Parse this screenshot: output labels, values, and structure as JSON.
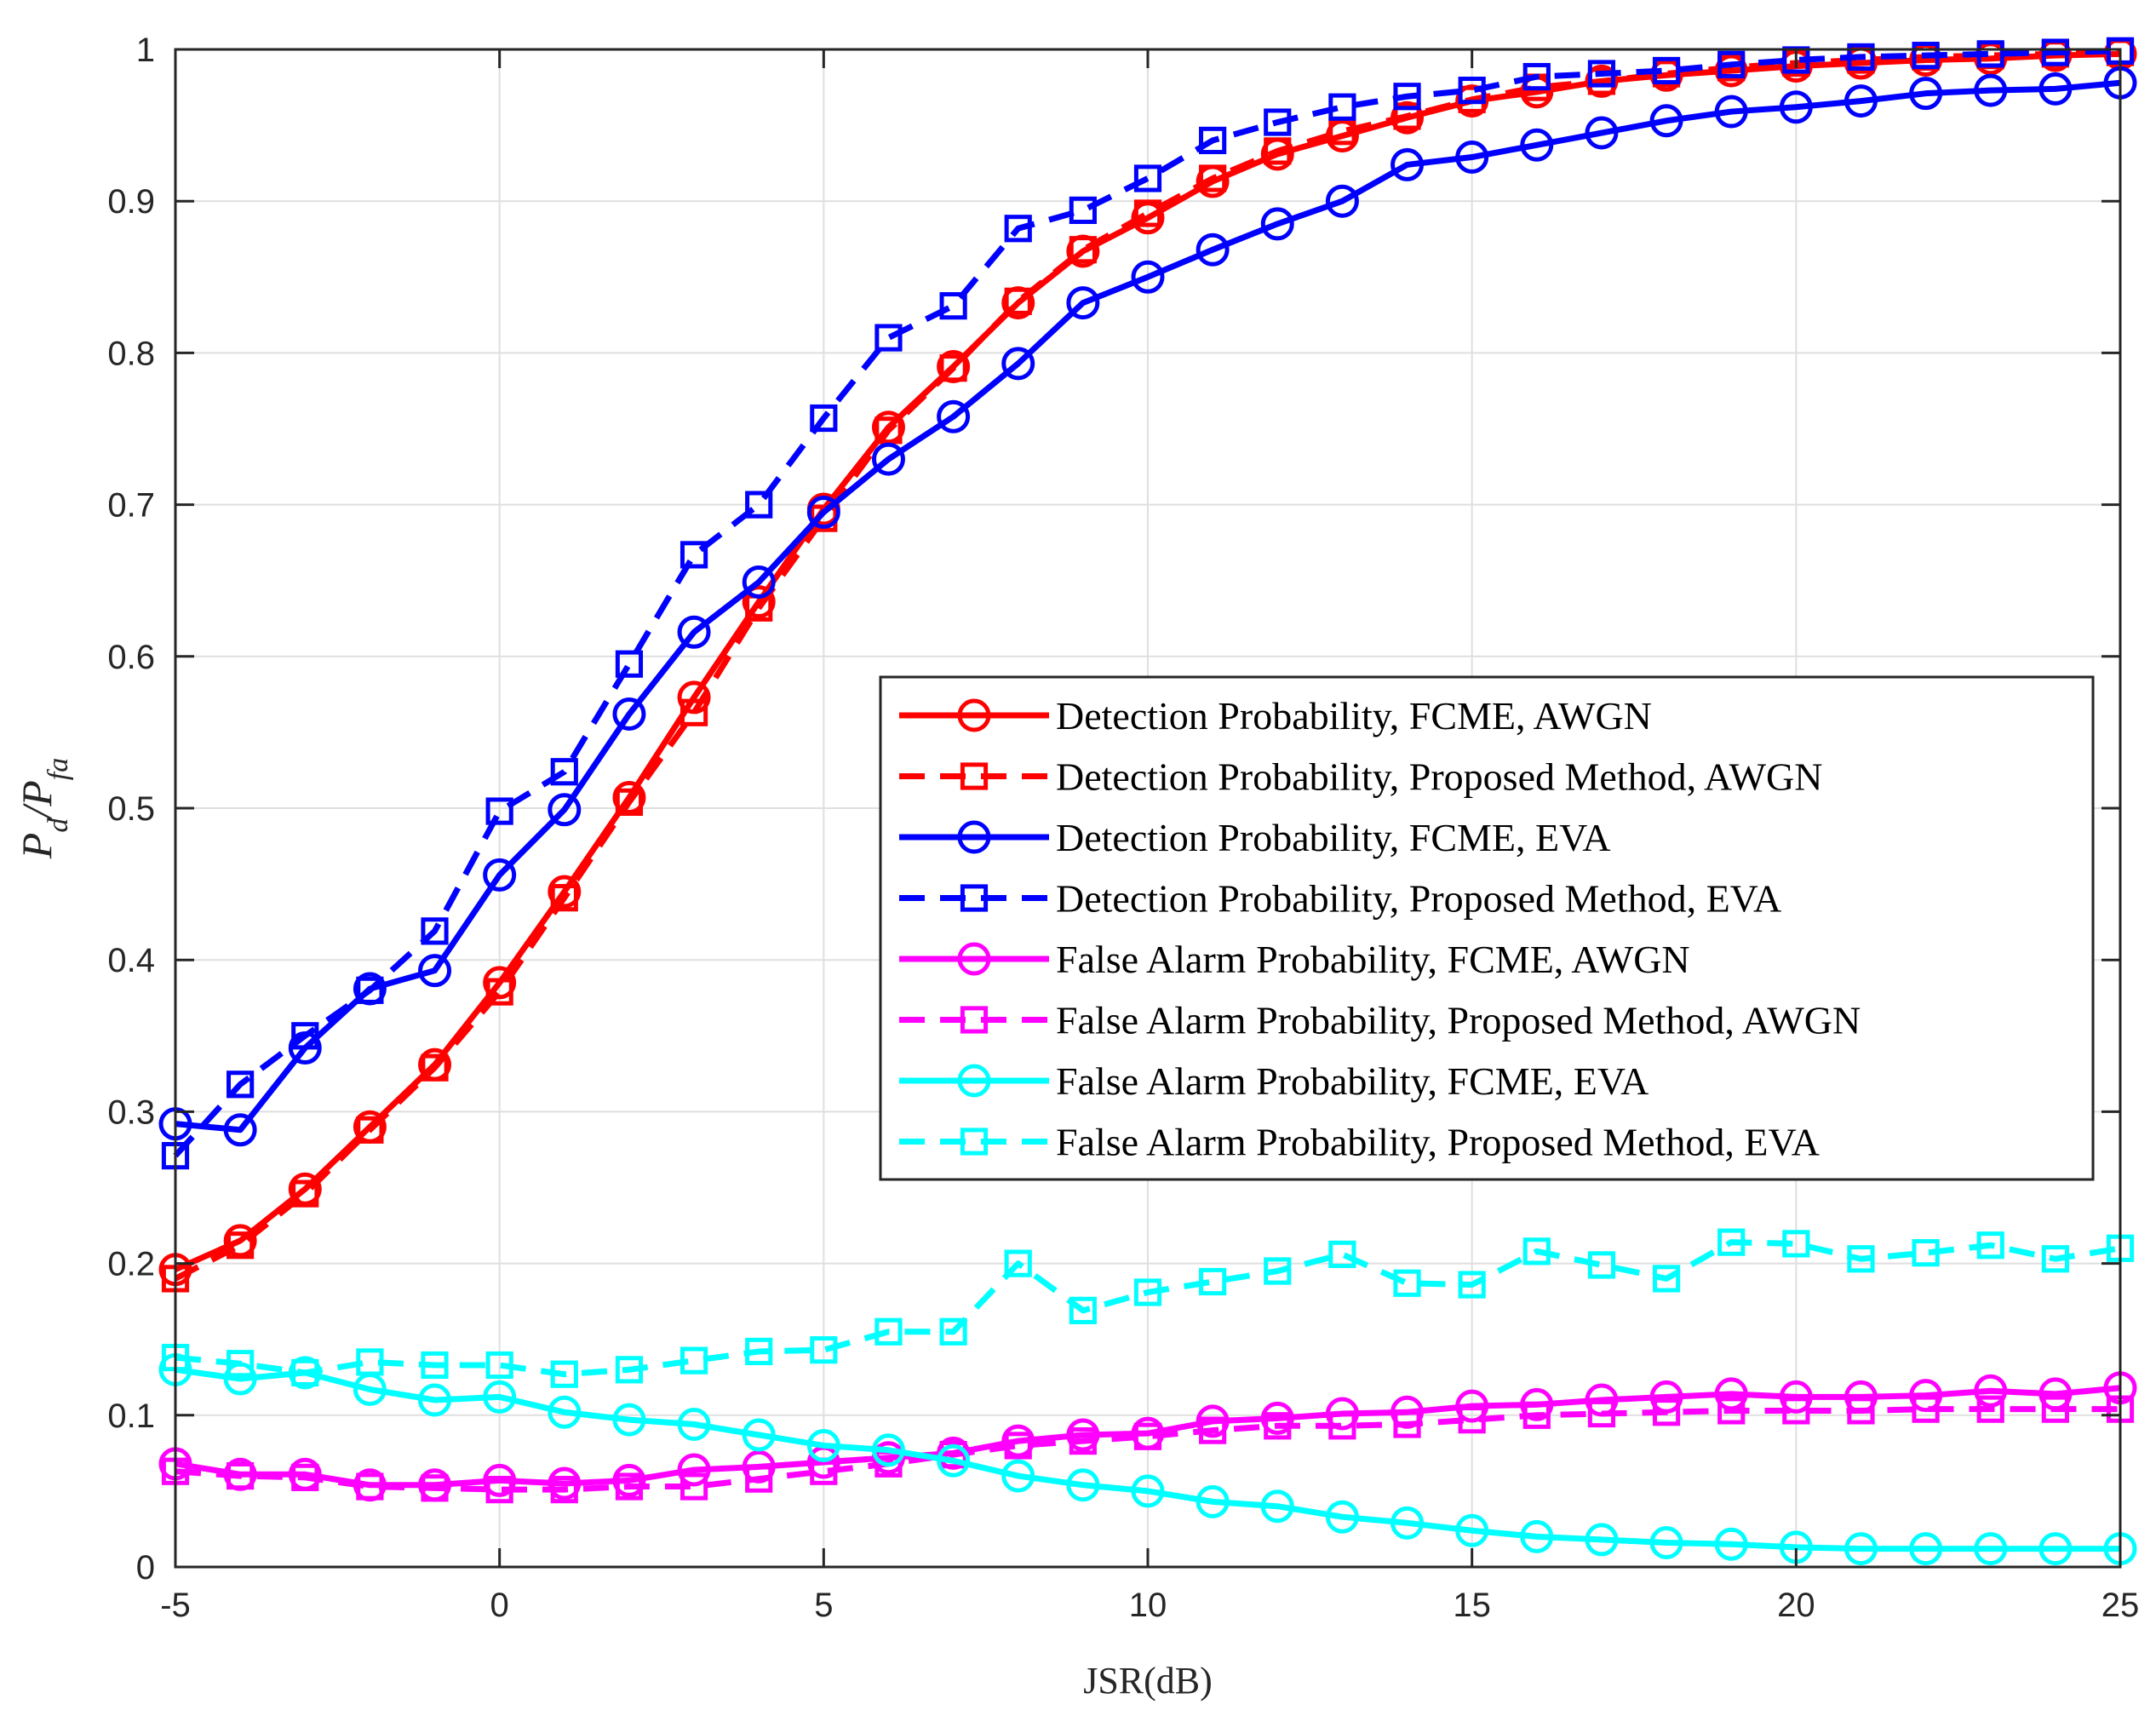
{
  "chart_data": {
    "type": "line",
    "title": "",
    "xlabel": "JSR(dB)",
    "ylabel": {
      "main": "P",
      "sub1": "d",
      "sep": "/P",
      "sub2": "fa"
    },
    "xlim": [
      -5,
      25
    ],
    "ylim": [
      0,
      1
    ],
    "xticks": [
      "-5",
      "0",
      "5",
      "10",
      "15",
      "20",
      "25"
    ],
    "yticks": [
      "0",
      "0.1",
      "0.2",
      "0.3",
      "0.4",
      "0.5",
      "0.6",
      "0.7",
      "0.8",
      "0.9",
      "1"
    ],
    "grid": true,
    "legend_location": "right-middle",
    "x": [
      -5,
      -4,
      -3,
      -2,
      -1,
      0,
      1,
      2,
      3,
      4,
      5,
      6,
      7,
      8,
      9,
      10,
      11,
      12,
      13,
      14,
      15,
      16,
      17,
      18,
      19,
      20,
      21,
      22,
      23,
      24,
      25
    ],
    "series": [
      {
        "name": "Detection Probability, FCME, AWGN",
        "color": "#ff0000",
        "dashed": false,
        "marker": "circle",
        "values": [
          0.196,
          0.215,
          0.249,
          0.29,
          0.331,
          0.385,
          0.445,
          0.507,
          0.573,
          0.636,
          0.697,
          0.751,
          0.791,
          0.833,
          0.867,
          0.889,
          0.913,
          0.931,
          0.943,
          0.955,
          0.966,
          0.972,
          0.979,
          0.983,
          0.986,
          0.989,
          0.991,
          0.993,
          0.994,
          0.996,
          0.997
        ]
      },
      {
        "name": "Detection Probability, Proposed Method, AWGN",
        "color": "#ff0000",
        "dashed": true,
        "marker": "square",
        "values": [
          0.19,
          0.212,
          0.246,
          0.288,
          0.329,
          0.379,
          0.441,
          0.504,
          0.563,
          0.632,
          0.691,
          0.749,
          0.79,
          0.834,
          0.868,
          0.892,
          0.915,
          0.933,
          0.946,
          0.956,
          0.967,
          0.975,
          0.979,
          0.984,
          0.988,
          0.991,
          0.993,
          0.995,
          0.996,
          0.997,
          0.998
        ]
      },
      {
        "name": "Detection Probability, FCME, EVA",
        "color": "#0000ff",
        "dashed": false,
        "marker": "circle",
        "values": [
          0.292,
          0.288,
          0.342,
          0.381,
          0.393,
          0.456,
          0.499,
          0.562,
          0.616,
          0.649,
          0.695,
          0.73,
          0.758,
          0.793,
          0.833,
          0.85,
          0.868,
          0.885,
          0.9,
          0.924,
          0.929,
          0.937,
          0.945,
          0.953,
          0.959,
          0.962,
          0.966,
          0.971,
          0.973,
          0.974,
          0.978
        ]
      },
      {
        "name": "Detection Probability, Proposed Method, EVA",
        "color": "#0000ff",
        "dashed": true,
        "marker": "square",
        "values": [
          0.271,
          0.318,
          0.35,
          0.38,
          0.419,
          0.498,
          0.524,
          0.595,
          0.667,
          0.7,
          0.757,
          0.81,
          0.831,
          0.882,
          0.894,
          0.915,
          0.94,
          0.952,
          0.962,
          0.969,
          0.973,
          0.982,
          0.984,
          0.986,
          0.99,
          0.993,
          0.995,
          0.996,
          0.997,
          0.998,
          0.999
        ]
      },
      {
        "name": "False Alarm Probability, FCME, AWGN",
        "color": "#ff00ff",
        "dashed": false,
        "marker": "circle",
        "values": [
          0.068,
          0.061,
          0.061,
          0.054,
          0.054,
          0.057,
          0.055,
          0.057,
          0.064,
          0.066,
          0.069,
          0.072,
          0.075,
          0.083,
          0.087,
          0.088,
          0.096,
          0.098,
          0.101,
          0.102,
          0.106,
          0.107,
          0.11,
          0.112,
          0.114,
          0.112,
          0.112,
          0.113,
          0.116,
          0.114,
          0.118
        ]
      },
      {
        "name": "False Alarm Probability, Proposed Method, AWGN",
        "color": "#ff00ff",
        "dashed": true,
        "marker": "square",
        "values": [
          0.063,
          0.06,
          0.059,
          0.053,
          0.052,
          0.051,
          0.051,
          0.053,
          0.053,
          0.058,
          0.063,
          0.068,
          0.074,
          0.08,
          0.083,
          0.086,
          0.09,
          0.093,
          0.093,
          0.094,
          0.097,
          0.1,
          0.101,
          0.102,
          0.103,
          0.103,
          0.103,
          0.104,
          0.104,
          0.104,
          0.104
        ]
      },
      {
        "name": "False Alarm Probability, FCME, EVA",
        "color": "#00ffff",
        "dashed": false,
        "marker": "circle",
        "values": [
          0.13,
          0.124,
          0.128,
          0.117,
          0.11,
          0.112,
          0.102,
          0.097,
          0.094,
          0.087,
          0.08,
          0.077,
          0.07,
          0.06,
          0.054,
          0.05,
          0.043,
          0.04,
          0.033,
          0.029,
          0.024,
          0.02,
          0.018,
          0.016,
          0.015,
          0.013,
          0.012,
          0.012,
          0.012,
          0.012,
          0.012
        ]
      },
      {
        "name": "False Alarm Probability, Proposed Method, EVA",
        "color": "#00ffff",
        "dashed": true,
        "marker": "square",
        "values": [
          0.138,
          0.134,
          0.128,
          0.135,
          0.133,
          0.133,
          0.127,
          0.13,
          0.136,
          0.142,
          0.143,
          0.155,
          0.155,
          0.2,
          0.169,
          0.181,
          0.188,
          0.195,
          0.206,
          0.187,
          0.186,
          0.208,
          0.199,
          0.19,
          0.214,
          0.213,
          0.203,
          0.207,
          0.212,
          0.203,
          0.21
        ]
      }
    ]
  }
}
